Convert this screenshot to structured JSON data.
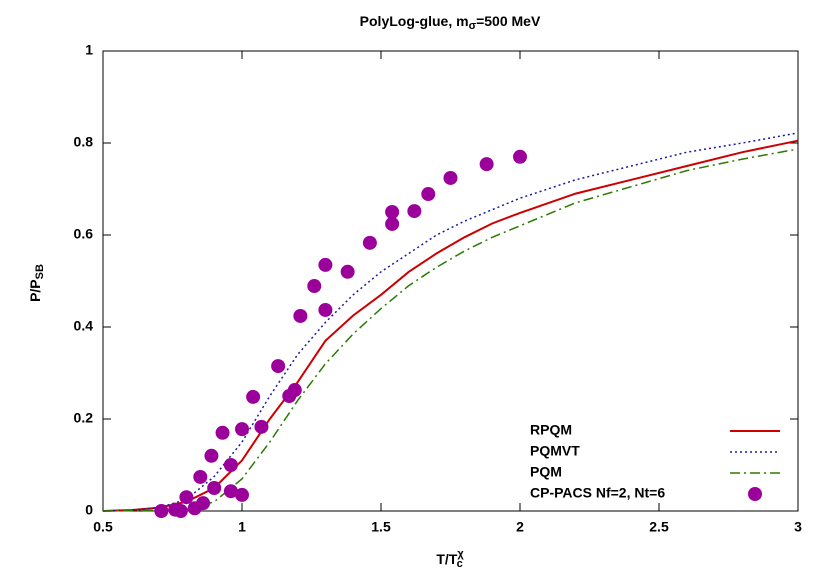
{
  "chart_data": {
    "type": "line",
    "title": [
      "PolyLog-glue, m",
      "σ",
      "=500 MeV"
    ],
    "x_label": [
      "T/T",
      "χ",
      "c"
    ],
    "y_label": [
      "P/P",
      "SB"
    ],
    "xlim": [
      0.5,
      3
    ],
    "ylim": [
      0,
      1
    ],
    "xticks": [
      0.5,
      1,
      1.5,
      2,
      2.5,
      3
    ],
    "yticks": [
      0,
      0.2,
      0.4,
      0.6,
      0.8,
      1
    ],
    "grid": false,
    "legend": "lower right",
    "x": [
      0.5,
      0.6,
      0.7,
      0.8,
      0.9,
      1.0,
      1.1,
      1.2,
      1.3,
      1.4,
      1.5,
      1.6,
      1.7,
      1.8,
      1.9,
      2.0,
      2.2,
      2.4,
      2.6,
      2.8,
      3.0
    ],
    "series": [
      {
        "name": "RPQM",
        "color": "#cc0000",
        "dash": "solid",
        "values": [
          0,
          0.002,
          0.007,
          0.02,
          0.05,
          0.11,
          0.2,
          0.28,
          0.37,
          0.425,
          0.47,
          0.52,
          0.56,
          0.595,
          0.625,
          0.648,
          0.69,
          0.72,
          0.75,
          0.78,
          0.805
        ]
      },
      {
        "name": "PQMVT",
        "color": "#1a1aa0",
        "dash": "dotted",
        "values": [
          0,
          0.002,
          0.007,
          0.025,
          0.075,
          0.15,
          0.25,
          0.34,
          0.41,
          0.47,
          0.52,
          0.56,
          0.6,
          0.63,
          0.655,
          0.68,
          0.72,
          0.75,
          0.78,
          0.8,
          0.822
        ]
      },
      {
        "name": "PQM",
        "color": "#2a7a00",
        "dash": "dashdot",
        "values": [
          0,
          0.001,
          0.001,
          0.003,
          0.02,
          0.07,
          0.15,
          0.24,
          0.32,
          0.385,
          0.44,
          0.49,
          0.53,
          0.565,
          0.595,
          0.62,
          0.67,
          0.705,
          0.74,
          0.765,
          0.787
        ]
      },
      {
        "name": "CP-PACS Nf=2, Nt=6",
        "color": "#9b009b",
        "type": "scatter",
        "x": [
          0.71,
          0.76,
          0.78,
          0.8,
          0.83,
          0.85,
          0.86,
          0.89,
          0.9,
          0.93,
          0.96,
          0.96,
          1.0,
          1.0,
          1.04,
          1.07,
          1.13,
          1.17,
          1.19,
          1.21,
          1.26,
          1.3,
          1.3,
          1.38,
          1.46,
          1.54,
          1.54,
          1.62,
          1.67,
          1.75,
          1.88,
          2.0
        ],
        "values": [
          0.0,
          0.003,
          0.0,
          0.03,
          0.006,
          0.074,
          0.017,
          0.12,
          0.05,
          0.17,
          0.043,
          0.1,
          0.178,
          0.035,
          0.248,
          0.183,
          0.315,
          0.25,
          0.263,
          0.424,
          0.489,
          0.437,
          0.535,
          0.52,
          0.583,
          0.65,
          0.624,
          0.652,
          0.689,
          0.724,
          0.754,
          0.77
        ]
      }
    ]
  }
}
